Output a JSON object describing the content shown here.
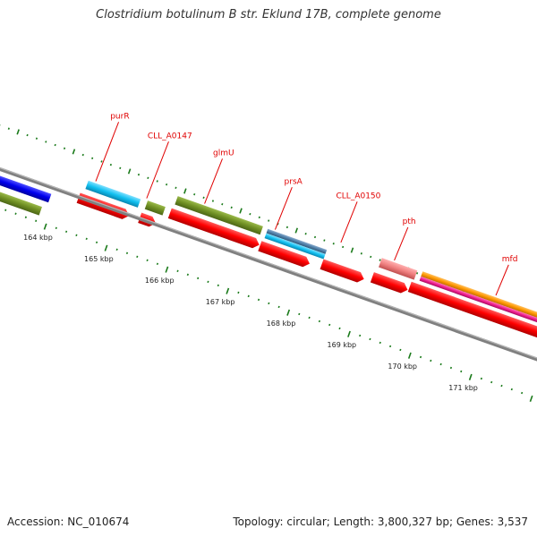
{
  "title": "Clostridium botulinum B str. Eklund 17B, complete genome",
  "footer": {
    "accession": "Accession: NC_010674",
    "summary": "Topology: circular; Length: 3,800,327 bp; Genes: 3,537"
  },
  "genes": [
    {
      "label": "purR",
      "color": "#e00000"
    },
    {
      "label": "CLL_A0147",
      "color": "#e00000"
    },
    {
      "label": "glmU",
      "color": "#e00000"
    },
    {
      "label": "prsA",
      "color": "#e00000"
    },
    {
      "label": "CLL_A0150",
      "color": "#e00000"
    },
    {
      "label": "pth",
      "color": "#e00000"
    },
    {
      "label": "mfd",
      "color": "#e00000"
    }
  ],
  "scale_ticks": [
    "164 kbp",
    "165 kbp",
    "166 kbp",
    "167 kbp",
    "168 kbp",
    "169 kbp",
    "170 kbp",
    "171 kbp"
  ],
  "colors": {
    "cds": "#ff0000",
    "blue": "#0000ee",
    "olive": "#6f8f23",
    "cyan": "#11c0f0",
    "steel": "#4f7fa8",
    "pink": "#f08080",
    "orange": "#ff9900",
    "magenta": "#ee1f8f",
    "backbone": "#808080",
    "tick": "#1a7a1a"
  }
}
